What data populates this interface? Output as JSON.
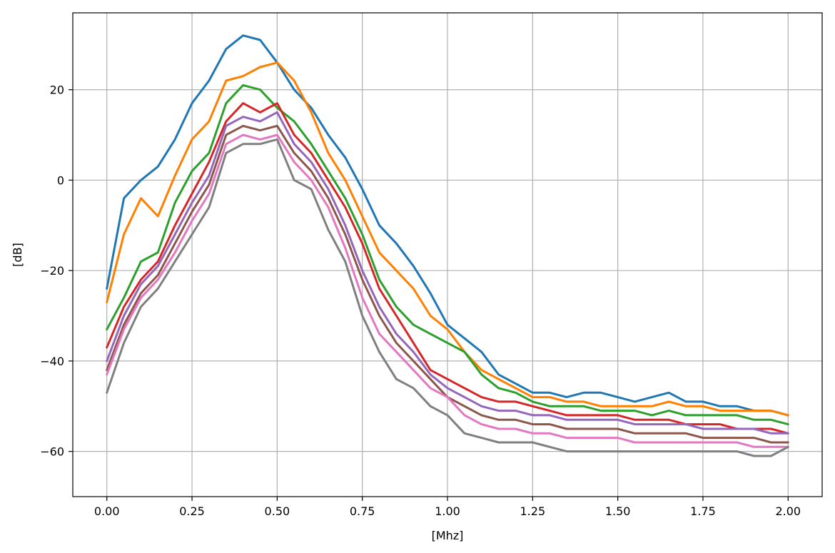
{
  "chart_data": {
    "type": "line",
    "title": "",
    "xlabel": "[Mhz]",
    "ylabel": "[dB]",
    "xlim": [
      -0.1,
      2.1
    ],
    "ylim": [
      -70,
      37
    ],
    "grid": true,
    "legend": "none",
    "xticks": [
      0.0,
      0.25,
      0.5,
      0.75,
      1.0,
      1.25,
      1.5,
      1.75,
      2.0
    ],
    "xtick_labels": [
      "0.00",
      "0.25",
      "0.50",
      "0.75",
      "1.00",
      "1.25",
      "1.50",
      "1.75",
      "2.00"
    ],
    "yticks": [
      20,
      0,
      -20,
      -40,
      -60
    ],
    "ytick_labels": [
      "20",
      "0",
      "−20",
      "−40",
      "−60"
    ],
    "x": [
      0.0,
      0.05,
      0.1,
      0.15,
      0.2,
      0.25,
      0.3,
      0.35,
      0.4,
      0.45,
      0.5,
      0.55,
      0.6,
      0.65,
      0.7,
      0.75,
      0.8,
      0.85,
      0.9,
      0.95,
      1.0,
      1.05,
      1.1,
      1.15,
      1.2,
      1.25,
      1.3,
      1.35,
      1.4,
      1.45,
      1.5,
      1.55,
      1.6,
      1.65,
      1.7,
      1.75,
      1.8,
      1.85,
      1.9,
      1.95,
      2.0
    ],
    "series": [
      {
        "color": "#1f77b4",
        "values": [
          -24,
          -4,
          0,
          3,
          9,
          17,
          22,
          29,
          32,
          31,
          26,
          20,
          16,
          10,
          5,
          -2,
          -10,
          -14,
          -19,
          -25,
          -32,
          -35,
          -38,
          -43,
          -45,
          -47,
          -47,
          -48,
          -47,
          -47,
          -48,
          -49,
          -48,
          -47,
          -49,
          -49,
          -50,
          -50,
          -51,
          -51,
          -52
        ]
      },
      {
        "color": "#ff7f00",
        "values": [
          -27,
          -12,
          -4,
          -8,
          1,
          9,
          13,
          22,
          23,
          25,
          26,
          22,
          15,
          6,
          0,
          -8,
          -16,
          -20,
          -24,
          -30,
          -33,
          -38,
          -42,
          -44,
          -46,
          -48,
          -48,
          -49,
          -49,
          -50,
          -50,
          -50,
          -50,
          -49,
          -50,
          -50,
          -51,
          -51,
          -51,
          -51,
          -52
        ]
      },
      {
        "color": "#2ca02c",
        "values": [
          -33,
          -26,
          -18,
          -16,
          -5,
          2,
          6,
          17,
          21,
          20,
          16,
          13,
          8,
          2,
          -4,
          -12,
          -22,
          -28,
          -32,
          -34,
          -36,
          -38,
          -43,
          -46,
          -47,
          -49,
          -50,
          -50,
          -50,
          -51,
          -51,
          -51,
          -52,
          -51,
          -52,
          -52,
          -52,
          -52,
          -53,
          -53,
          -54
        ]
      },
      {
        "color": "#d62728",
        "values": [
          -37,
          -28,
          -22,
          -18,
          -10,
          -3,
          4,
          13,
          17,
          15,
          17,
          10,
          6,
          0,
          -6,
          -14,
          -24,
          -30,
          -36,
          -42,
          -44,
          -46,
          -48,
          -49,
          -49,
          -50,
          -51,
          -52,
          -52,
          -52,
          -52,
          -53,
          -53,
          -53,
          -54,
          -54,
          -54,
          -55,
          -55,
          -55,
          -56
        ]
      },
      {
        "color": "#9467bd",
        "values": [
          -40,
          -30,
          -23,
          -19,
          -12,
          -5,
          1,
          12,
          14,
          13,
          15,
          8,
          4,
          -2,
          -10,
          -20,
          -28,
          -34,
          -38,
          -43,
          -46,
          -48,
          -50,
          -51,
          -51,
          -52,
          -52,
          -53,
          -53,
          -53,
          -53,
          -54,
          -54,
          -54,
          -54,
          -55,
          -55,
          -55,
          -55,
          -56,
          -56
        ]
      },
      {
        "color": "#8c564b",
        "values": [
          -42,
          -32,
          -25,
          -21,
          -14,
          -7,
          -1,
          10,
          12,
          11,
          12,
          6,
          2,
          -4,
          -12,
          -22,
          -30,
          -36,
          -40,
          -44,
          -48,
          -50,
          -52,
          -53,
          -53,
          -54,
          -54,
          -55,
          -55,
          -55,
          -55,
          -56,
          -56,
          -56,
          -56,
          -57,
          -57,
          -57,
          -57,
          -58,
          -58
        ]
      },
      {
        "color": "#e377c2",
        "values": [
          -43,
          -33,
          -26,
          -22,
          -16,
          -9,
          -3,
          8,
          10,
          9,
          10,
          4,
          0,
          -6,
          -15,
          -26,
          -34,
          -38,
          -42,
          -46,
          -48,
          -52,
          -54,
          -55,
          -55,
          -56,
          -56,
          -57,
          -57,
          -57,
          -57,
          -58,
          -58,
          -58,
          -58,
          -58,
          -58,
          -58,
          -59,
          -59,
          -59
        ]
      },
      {
        "color": "#7f7f7f",
        "values": [
          -47,
          -36,
          -28,
          -24,
          -18,
          -12,
          -6,
          6,
          8,
          8,
          9,
          0,
          -2,
          -11,
          -18,
          -30,
          -38,
          -44,
          -46,
          -50,
          -52,
          -56,
          -57,
          -58,
          -58,
          -58,
          -59,
          -60,
          -60,
          -60,
          -60,
          -60,
          -60,
          -60,
          -60,
          -60,
          -60,
          -60,
          -61,
          -61,
          -59
        ]
      }
    ]
  }
}
